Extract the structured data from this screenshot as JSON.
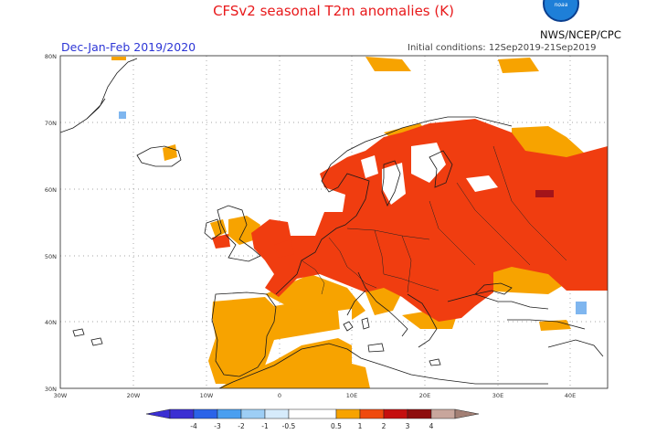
{
  "header": {
    "title": "CFSv2 seasonal T2m anomalies (K)",
    "season": "Dec-Jan-Feb 2019/2020",
    "initial_conditions": "Initial conditions: 12Sep2019-21Sep2019",
    "agency": "NWS/NCEP/CPC",
    "logo_text": "noaa"
  },
  "map": {
    "lon_labels": [
      "30W",
      "20W",
      "10W",
      "0",
      "10E",
      "20E",
      "30E",
      "40E"
    ],
    "lat_labels": [
      "80N",
      "70N",
      "60N",
      "50N",
      "40N",
      "30N"
    ],
    "lon_range": [
      -30,
      45
    ],
    "lat_range": [
      30,
      80
    ]
  },
  "colorbar": {
    "labels": [
      "-4",
      "-3",
      "-2",
      "-1",
      "-0.5",
      "0.5",
      "1",
      "2",
      "3",
      "4"
    ],
    "colors": [
      "#3b2fd3",
      "#2b63e8",
      "#4a9ff0",
      "#9dcef5",
      "#ffffff",
      "#f7a300",
      "#f04a0e",
      "#c50f0f",
      "#8e0d0d",
      "#c8a69c"
    ]
  },
  "colors": {
    "strong_warm": "#f03d10",
    "warm": "#f7a300",
    "very_warm": "#a3141a",
    "cool": "#7fb6ef",
    "coast": "#1a1a1a"
  }
}
